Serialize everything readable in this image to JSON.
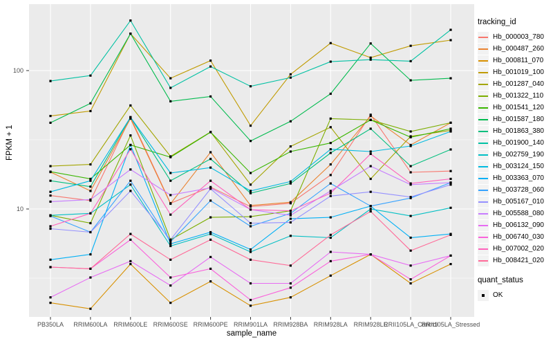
{
  "chart_data": {
    "type": "line",
    "title": "",
    "xlabel": "sample_name",
    "ylabel": "FPKM + 1",
    "y_scale": "log10",
    "ylim": [
      1.66,
      302
    ],
    "y_ticks": [
      "10",
      "100"
    ],
    "y_tick_values": [
      10,
      100
    ],
    "y_minor_values": [
      3.162,
      31.62
    ],
    "grid": "on",
    "panel_bg": "#EBEBEB",
    "grid_color": "#FFFFFF",
    "point_marker": "black-square",
    "legend_position": "right",
    "legend_title": "tracking_id",
    "x": [
      "PB350LA",
      "RRIM600LA",
      "RRIM600LE",
      "RRIM600SE",
      "RRIM600PE",
      "RRIM901LA",
      "RRIM928BA",
      "RRIM928LA",
      "RRIM928LE",
      "RRII105LA_Control",
      "RRII105LA_Stressed"
    ],
    "series": [
      {
        "name": "Hb_000003_780",
        "color": "#F8766D",
        "values": [
          12.5,
          11.5,
          46,
          11,
          14.4,
          10.4,
          11,
          17.6,
          48,
          18.4,
          18.8
        ]
      },
      {
        "name": "Hb_000487_260",
        "color": "#EA8331",
        "values": [
          18.5,
          13.5,
          45,
          10.9,
          25.7,
          10.6,
          11.2,
          21,
          47,
          29,
          42
        ]
      },
      {
        "name": "Hb_000811_070",
        "color": "#D89000",
        "values": [
          2.1,
          1.9,
          4,
          2.1,
          3,
          2,
          2.3,
          3.3,
          4.7,
          2.9,
          4
        ]
      },
      {
        "name": "Hb_001019_100",
        "color": "#C09B00",
        "values": [
          47,
          51,
          185,
          88,
          118,
          40,
          94,
          158,
          124,
          151,
          166
        ]
      },
      {
        "name": "Hb_001287_040",
        "color": "#A3A500",
        "values": [
          20.4,
          21,
          56,
          24,
          36,
          15,
          28.3,
          39,
          16.5,
          33.5,
          37
        ]
      },
      {
        "name": "Hb_001322_110",
        "color": "#7CAE00",
        "values": [
          9,
          7.9,
          34,
          6,
          8.7,
          8.8,
          9.7,
          45,
          44,
          36.3,
          42
        ]
      },
      {
        "name": "Hb_001541_120",
        "color": "#39B600",
        "values": [
          18.6,
          16.5,
          29,
          23.7,
          35.9,
          18.2,
          26,
          30,
          44,
          33,
          38
        ]
      },
      {
        "name": "Hb_001587_180",
        "color": "#00BB4E",
        "values": [
          42,
          58,
          185,
          60,
          65,
          31,
          43,
          68,
          157,
          85,
          88
        ]
      },
      {
        "name": "Hb_001863_380",
        "color": "#00BF7D",
        "values": [
          16,
          14.5,
          46,
          16,
          23,
          13,
          15.3,
          25.4,
          38,
          20.4,
          26.9
        ]
      },
      {
        "name": "Hb_001900_140",
        "color": "#00C1A3",
        "values": [
          84,
          92,
          230,
          75,
          107,
          77,
          89,
          116,
          120,
          117,
          197
        ]
      },
      {
        "name": "Hb_002759_190",
        "color": "#00BFC4",
        "values": [
          9,
          9.3,
          15,
          5.4,
          6.6,
          4.9,
          6.4,
          6.2,
          10,
          8.9,
          10.2
        ]
      },
      {
        "name": "Hb_003124_150",
        "color": "#00BAE0",
        "values": [
          13.3,
          16,
          46,
          18.2,
          19.9,
          13.5,
          15.8,
          27,
          26,
          28.5,
          36.3
        ]
      },
      {
        "name": "Hb_003363_070",
        "color": "#00B0F6",
        "values": [
          4.3,
          4.7,
          29,
          5.6,
          6.8,
          5.1,
          8.5,
          8.7,
          10.5,
          6.2,
          6.6
        ]
      },
      {
        "name": "Hb_003728_060",
        "color": "#35A2FF",
        "values": [
          8.9,
          6.8,
          16,
          5.8,
          11.5,
          7.5,
          9.3,
          15.3,
          10.5,
          12,
          15.5
        ]
      },
      {
        "name": "Hb_005167_010",
        "color": "#9590FF",
        "values": [
          7.2,
          6.8,
          13.5,
          6,
          14,
          7.9,
          8,
          12.4,
          13.3,
          12.2,
          15
        ]
      },
      {
        "name": "Hb_005588_080",
        "color": "#C77CFF",
        "values": [
          11.3,
          11.7,
          19.3,
          12.6,
          14.2,
          9.9,
          9,
          13.5,
          20.4,
          15,
          15.5
        ]
      },
      {
        "name": "Hb_006132_090",
        "color": "#E76BF3",
        "values": [
          2.3,
          3.2,
          4.2,
          2.8,
          4.5,
          2.9,
          2.9,
          4.9,
          4.7,
          3.9,
          4.6
        ]
      },
      {
        "name": "Hb_006740_030",
        "color": "#FA62DB",
        "values": [
          3.8,
          3.7,
          6,
          3.2,
          3.7,
          2.2,
          2.7,
          4.2,
          4.7,
          3.1,
          4.6
        ]
      },
      {
        "name": "Hb_007002_020",
        "color": "#FF62BC",
        "values": [
          7.5,
          9.3,
          27,
          9.1,
          16,
          9.9,
          9.7,
          13,
          25,
          15.3,
          16.5
        ]
      },
      {
        "name": "Hb_008421_020",
        "color": "#FF6A98",
        "values": [
          3.8,
          3.7,
          6.6,
          4.3,
          6,
          4.3,
          3.9,
          6.5,
          9.6,
          5,
          6.5
        ]
      }
    ],
    "quant_legend": {
      "title": "quant_status",
      "items": [
        {
          "label": "OK",
          "marker": "black-square"
        }
      ]
    }
  }
}
